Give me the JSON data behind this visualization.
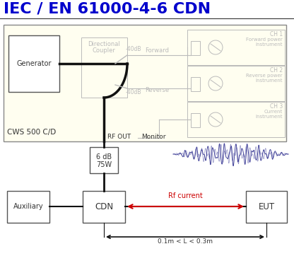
{
  "title": "IEC / EN 61000-4-6 CDN",
  "title_color": "#0000CC",
  "title_fontsize": 16,
  "bg_color": "#FFFFFF",
  "cws_bg": "#FFFEF0",
  "gray_color": "#AAAAAA",
  "dark_color": "#333333",
  "red_color": "#CC0000",
  "navy_color": "#222266",
  "line_color": "#000000",
  "box_edge": "#555555",
  "cws_label": "CWS 500 C/D",
  "generator_label": "Generator",
  "dir_coupler_label1": "Directional",
  "dir_coupler_label2": "Coupler",
  "forward_label": "Forward",
  "reverse_label": "Reverse",
  "dB_label1": "-40dB",
  "dB_label2": "-40dB",
  "ch1_label": "CH 1",
  "ch1_sub1": "Forward power",
  "ch1_sub2": "instrument",
  "ch2_label": "CH 2",
  "ch2_sub1": "Reverse power",
  "ch2_sub2": "instrument",
  "ch3_label": "CH 3",
  "ch3_sub1": "Current",
  "ch3_sub2": "instrument",
  "rfout_label": "RF OUT",
  "monitor_label": "Monitor",
  "attenuator_label1": "6 dB",
  "attenuator_label2": "75W",
  "aux_label": "Auxiliary",
  "cdn_label": "CDN",
  "eut_label": "EUT",
  "rf_current_label": "Rf current",
  "dim_label": "0.1m < L < 0.3m"
}
